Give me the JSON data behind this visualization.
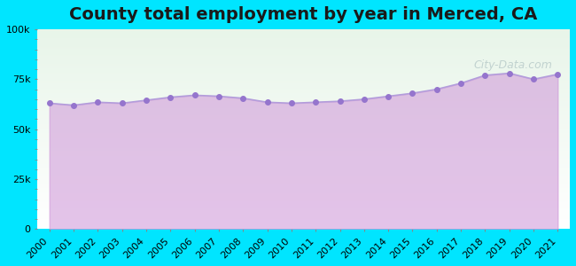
{
  "title": "County total employment by year in Merced, CA",
  "years": [
    2000,
    2001,
    2002,
    2003,
    2004,
    2005,
    2006,
    2007,
    2008,
    2009,
    2010,
    2011,
    2012,
    2013,
    2014,
    2015,
    2016,
    2017,
    2018,
    2019,
    2020,
    2021
  ],
  "values": [
    63000,
    62000,
    63500,
    63000,
    64500,
    66000,
    67000,
    66500,
    65500,
    63500,
    63000,
    63500,
    64000,
    65000,
    66500,
    68000,
    70000,
    73000,
    77000,
    78000,
    75000,
    77500
  ],
  "ylim": [
    0,
    100000
  ],
  "yticks": [
    0,
    25000,
    50000,
    75000,
    100000
  ],
  "ytick_labels": [
    "0",
    "25k",
    "50k",
    "75k",
    "100k"
  ],
  "line_color": "#b39ddb",
  "fill_color": "#ce93d8",
  "fill_alpha": 0.55,
  "marker_color": "#9575cd",
  "marker_size": 4,
  "background_outer": "#00e5ff",
  "background_plot_top": "#e8f5e9",
  "background_plot_bottom": "#ffffff",
  "title_fontsize": 14,
  "title_fontweight": "bold",
  "watermark_text": "City-Data.com",
  "tick_label_fontsize": 8
}
